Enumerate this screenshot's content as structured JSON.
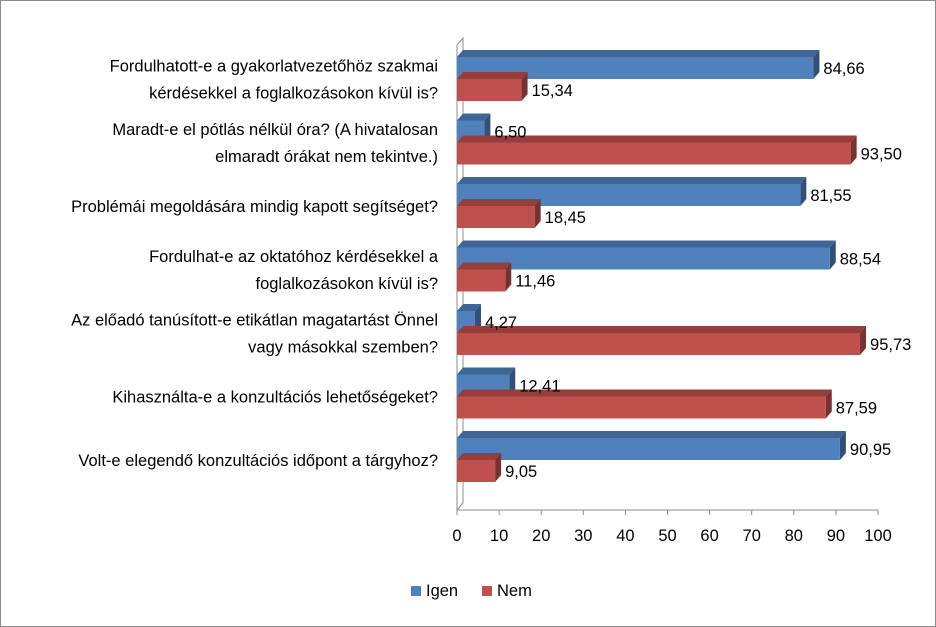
{
  "chart_data": {
    "type": "bar",
    "orientation": "horizontal",
    "three_d": true,
    "categories": [
      [
        "Fordulhatott-e a gyakorlatvezetőhöz szakmai",
        "kérdésekkel a foglalkozásokon kívül is?"
      ],
      [
        "Maradt-e el pótlás nélkül óra? (A hivatalosan",
        "elmaradt órákat nem tekintve.)"
      ],
      [
        "Problémái megoldására mindig kapott segítséget?"
      ],
      [
        "Fordulhat-e az oktatóhoz kérdésekkel a",
        "foglalkozásokon kívül is?"
      ],
      [
        "Az előadó tanúsított-e etikátlan magatartást Önnel",
        "vagy másokkal szemben?"
      ],
      [
        "Kihasználta-e a konzultációs lehetőségeket?"
      ],
      [
        "Volt-e elegendő konzultációs időpont a tárgyhoz?"
      ]
    ],
    "series": [
      {
        "name": "Igen",
        "color": "#4f81bd",
        "values": [
          84.66,
          6.5,
          81.55,
          88.54,
          4.27,
          12.41,
          90.95
        ],
        "labels": [
          "84,66",
          "6,50",
          "81,55",
          "88,54",
          "4,27",
          "12,41",
          "90,95"
        ]
      },
      {
        "name": "Nem",
        "color": "#c0504d",
        "values": [
          15.34,
          93.5,
          18.45,
          11.46,
          95.73,
          87.59,
          9.05
        ],
        "labels": [
          "15,34",
          "93,50",
          "18,45",
          "11,46",
          "95,73",
          "87,59",
          "9,05"
        ]
      }
    ],
    "xlim": [
      0,
      100
    ],
    "xticks": [
      0,
      10,
      20,
      30,
      40,
      50,
      60,
      70,
      80,
      90,
      100
    ],
    "xtick_labels": [
      "0",
      "10",
      "20",
      "30",
      "40",
      "50",
      "60",
      "70",
      "80",
      "90",
      "100"
    ],
    "grid": false,
    "legend": {
      "position": "bottom"
    },
    "title": "",
    "xlabel": "",
    "ylabel": ""
  }
}
